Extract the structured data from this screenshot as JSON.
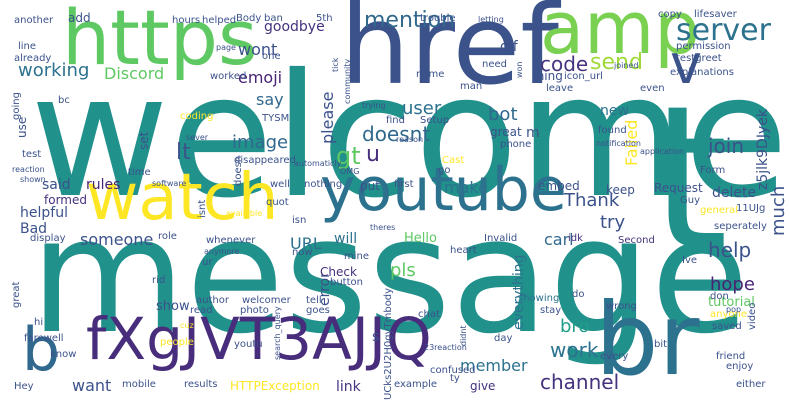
{
  "words": [
    {
      "id": "welcome",
      "text": "welcome",
      "color": "#21918c"
    },
    {
      "id": "message",
      "text": "message",
      "color": "#21918c"
    },
    {
      "id": "href",
      "text": "href",
      "color": "#3b528b"
    },
    {
      "id": "https",
      "text": "https",
      "color": "#5ec962"
    },
    {
      "id": "amp",
      "text": "amp",
      "color": "#7ad151"
    },
    {
      "id": "youtube",
      "text": "youtube",
      "color": "#2c728e"
    },
    {
      "id": "watch",
      "text": "watch",
      "color": "#fde725"
    },
    {
      "id": "fxgjvt3ajjq",
      "text": "fXgJVT3AJJQ",
      "color": "#472d7b"
    },
    {
      "id": "br",
      "text": "br",
      "color": "#2c728e"
    },
    {
      "id": "b",
      "text": "b",
      "color": "#31688e"
    },
    {
      "id": "t-big",
      "text": "t",
      "color": "#21918c"
    },
    {
      "id": "v",
      "text": "v",
      "color": "#3b528b"
    },
    {
      "id": "server",
      "text": "server",
      "color": "#2c728e"
    },
    {
      "id": "send",
      "text": "send",
      "color": "#a0da39"
    },
    {
      "id": "code",
      "text": "code",
      "color": "#46327e"
    },
    {
      "id": "mention",
      "text": "mention",
      "color": "#31688e"
    },
    {
      "id": "goodbye",
      "text": "goodbye",
      "color": "#46327e"
    },
    {
      "id": "wont",
      "text": "wont",
      "color": "#3b528b"
    },
    {
      "id": "working",
      "text": "working",
      "color": "#2c728e"
    },
    {
      "id": "discord",
      "text": "Discord",
      "color": "#5ec962"
    },
    {
      "id": "emoji",
      "text": "emoji",
      "color": "#482475"
    },
    {
      "id": "say",
      "text": "say",
      "color": "#31688e"
    },
    {
      "id": "image",
      "text": "image",
      "color": "#31688e"
    },
    {
      "id": "lt",
      "text": "lt",
      "color": "#3b528b"
    },
    {
      "id": "gt",
      "text": "gt",
      "color": "#5ec962"
    },
    {
      "id": "u",
      "text": "u",
      "color": "#472d7b"
    },
    {
      "id": "doesnt",
      "text": "doesnt",
      "color": "#31688e"
    },
    {
      "id": "user",
      "text": "user",
      "color": "#2c728e"
    },
    {
      "id": "bot",
      "text": "bot",
      "color": "#31688e"
    },
    {
      "id": "please",
      "text": "please",
      "color": "#3b528b"
    },
    {
      "id": "thank",
      "text": "Thank",
      "color": "#3b528b"
    },
    {
      "id": "join",
      "text": "join",
      "color": "#3b528b"
    },
    {
      "id": "help",
      "text": "help",
      "color": "#3b528b"
    },
    {
      "id": "hope",
      "text": "hope",
      "color": "#482475"
    },
    {
      "id": "try",
      "text": "try",
      "color": "#3b528b"
    },
    {
      "id": "much",
      "text": "much",
      "color": "#3b528b"
    },
    {
      "id": "make",
      "text": "make",
      "color": "#2c728e"
    },
    {
      "id": "embed",
      "text": "embed",
      "color": "#3b528b"
    },
    {
      "id": "someone",
      "text": "someone",
      "color": "#3b528b"
    },
    {
      "id": "url",
      "text": "URL",
      "color": "#2c728e"
    },
    {
      "id": "will",
      "text": "will",
      "color": "#2c728e"
    },
    {
      "id": "hello",
      "text": "Hello",
      "color": "#5ec962"
    },
    {
      "id": "carl",
      "text": "carl",
      "color": "#31688e"
    },
    {
      "id": "error",
      "text": "error",
      "color": "#3b528b"
    },
    {
      "id": "pls",
      "text": "pls",
      "color": "#5ec962"
    },
    {
      "id": "check",
      "text": "Check",
      "color": "#46327e"
    },
    {
      "id": "everything",
      "text": "everything",
      "color": "#2c728e"
    },
    {
      "id": "work",
      "text": "work",
      "color": "#2c728e"
    },
    {
      "id": "bro",
      "text": "bro",
      "color": "#1f9e89"
    },
    {
      "id": "member",
      "text": "member",
      "color": "#2c728e"
    },
    {
      "id": "channel",
      "text": "channel",
      "color": "#46327e"
    },
    {
      "id": "want",
      "text": "want",
      "color": "#3b528b"
    },
    {
      "id": "link",
      "text": "link",
      "color": "#46327e"
    },
    {
      "id": "give",
      "text": "give",
      "color": "#46327e"
    },
    {
      "id": "show",
      "text": "show",
      "color": "#3b528b"
    },
    {
      "id": "bad",
      "text": "Bad",
      "color": "#3b528b"
    },
    {
      "id": "delete",
      "text": "delete",
      "color": "#3b528b"
    },
    {
      "id": "request",
      "text": "Request",
      "color": "#3b528b"
    },
    {
      "id": "keep",
      "text": "keep",
      "color": "#3b528b"
    },
    {
      "id": "tutorial",
      "text": "tutorial",
      "color": "#5ec962"
    },
    {
      "id": "failed",
      "text": "Failed",
      "color": "#fde725"
    },
    {
      "id": "new",
      "text": "new",
      "color": "#2c728e"
    },
    {
      "id": "rules",
      "text": "rules",
      "color": "#482475"
    },
    {
      "id": "said",
      "text": "said",
      "color": "#3b528b"
    },
    {
      "id": "helpful",
      "text": "helpful",
      "color": "#3b528b"
    },
    {
      "id": "formed",
      "text": "formed",
      "color": "#46327e"
    },
    {
      "id": "set",
      "text": "set",
      "color": "#3b528b"
    },
    {
      "id": "use",
      "text": "use",
      "color": "#3b528b"
    },
    {
      "id": "add",
      "text": "add",
      "color": "#3b528b"
    },
    {
      "id": "put",
      "text": "put",
      "color": "#3b528b"
    },
    {
      "id": "thing",
      "text": "thing",
      "color": "#3b528b"
    },
    {
      "id": "name",
      "text": "name",
      "color": "#3b528b"
    },
    {
      "id": "need",
      "text": "need",
      "color": "#3b528b"
    },
    {
      "id": "gif",
      "text": "gif",
      "color": "#3b528b"
    },
    {
      "id": "great",
      "text": "great",
      "color": "#3b528b"
    },
    {
      "id": "m",
      "text": "m",
      "color": "#3b528b"
    },
    {
      "id": "idk",
      "text": "idk",
      "color": "#46327e"
    },
    {
      "id": "invalid",
      "text": "Invalid",
      "color": "#3b528b"
    },
    {
      "id": "second",
      "text": "Second",
      "color": "#46327e"
    },
    {
      "id": "wrong",
      "text": "wrong",
      "color": "#3b528b"
    },
    {
      "id": "stay",
      "text": "stay",
      "color": "#3b528b"
    },
    {
      "id": "showing",
      "text": "showing",
      "color": "#2c728e"
    },
    {
      "id": "every",
      "text": "every",
      "color": "#3b528b"
    },
    {
      "id": "video",
      "text": "video",
      "color": "#3b528b"
    },
    {
      "id": "anyone",
      "text": "anyone",
      "color": "#fde725"
    },
    {
      "id": "saved",
      "text": "saved",
      "color": "#3b528b"
    },
    {
      "id": "friend",
      "text": "friend",
      "color": "#3b528b"
    },
    {
      "id": "form",
      "text": "Form",
      "color": "#3b528b"
    },
    {
      "id": "role",
      "text": "role",
      "color": "#3b528b"
    },
    {
      "id": "whenever",
      "text": "whenever",
      "color": "#3b528b"
    },
    {
      "id": "display",
      "text": "display",
      "color": "#3b528b"
    },
    {
      "id": "time",
      "text": "time",
      "color": "#3b528b"
    },
    {
      "id": "well",
      "text": "well",
      "color": "#3b528b"
    },
    {
      "id": "nothing",
      "text": "nothing",
      "color": "#3b528b"
    },
    {
      "id": "first",
      "text": "first",
      "color": "#3b528b"
    },
    {
      "id": "isn",
      "text": "isn",
      "color": "#3b528b"
    },
    {
      "id": "now",
      "text": "now",
      "color": "#3b528b"
    },
    {
      "id": "heart",
      "text": "heart",
      "color": "#3b528b"
    },
    {
      "id": "ive",
      "text": "Ive",
      "color": "#3b528b"
    },
    {
      "id": "chat",
      "text": "chat",
      "color": "#3b528b"
    },
    {
      "id": "day",
      "text": "day",
      "color": "#3b528b"
    },
    {
      "id": "ty",
      "text": "ty",
      "color": "#3b528b"
    },
    {
      "id": "example",
      "text": "example",
      "color": "#3b528b"
    },
    {
      "id": "results",
      "text": "results",
      "color": "#3b528b"
    },
    {
      "id": "mobile",
      "text": "mobile",
      "color": "#3b528b"
    },
    {
      "id": "author",
      "text": "author",
      "color": "#3b528b"
    },
    {
      "id": "photo",
      "text": "photo",
      "color": "#3b528b"
    },
    {
      "id": "read",
      "text": "read",
      "color": "#3b528b"
    },
    {
      "id": "welcomer",
      "text": "welcomer",
      "color": "#3b528b"
    },
    {
      "id": "rid",
      "text": "rid",
      "color": "#3b528b"
    },
    {
      "id": "ur",
      "text": "ur",
      "color": "#3b528b"
    },
    {
      "id": "button",
      "text": "button",
      "color": "#3b528b"
    },
    {
      "id": "mine",
      "text": "mine",
      "color": "#3b528b"
    },
    {
      "id": "tell",
      "text": "tell",
      "color": "#3b528b"
    },
    {
      "id": "goes",
      "text": "goes",
      "color": "#3b528b"
    },
    {
      "id": "farewell",
      "text": "farewell",
      "color": "#3b528b"
    },
    {
      "id": "know",
      "text": "know",
      "color": "#3b528b"
    },
    {
      "id": "hi",
      "text": "hi",
      "color": "#3b528b"
    },
    {
      "id": "hey",
      "text": "Hey",
      "color": "#3b528b"
    },
    {
      "id": "great2",
      "text": "great",
      "color": "#3b528b"
    },
    {
      "id": "people",
      "text": "people",
      "color": "#fde725"
    },
    {
      "id": "httpexception",
      "text": "HTTPException",
      "color": "#fde725"
    },
    {
      "id": "confused",
      "text": "confused",
      "color": "#3b528b"
    },
    {
      "id": "enjoy",
      "text": "enjoy",
      "color": "#3b528b"
    },
    {
      "id": "either",
      "text": "either",
      "color": "#3b528b"
    },
    {
      "id": "bit",
      "text": "bit",
      "color": "#3b528b"
    },
    {
      "id": "don",
      "text": "don",
      "color": "#3b528b"
    },
    {
      "id": "general",
      "text": "general",
      "color": "#fde725"
    },
    {
      "id": "seperately",
      "text": "seperately",
      "color": "#3b528b"
    },
    {
      "id": "11uj",
      "text": "11UJg",
      "color": "#3b528b"
    },
    {
      "id": "guy",
      "text": "Guy",
      "color": "#3b528b"
    },
    {
      "id": "another",
      "text": "another",
      "color": "#3b528b"
    },
    {
      "id": "line",
      "text": "line",
      "color": "#3b528b"
    },
    {
      "id": "already",
      "text": "already",
      "color": "#3b528b"
    },
    {
      "id": "going",
      "text": "going",
      "color": "#3b528b"
    },
    {
      "id": "bc",
      "text": "bc",
      "color": "#3b528b"
    },
    {
      "id": "test",
      "text": "test",
      "color": "#3b528b"
    },
    {
      "id": "reaction",
      "text": "reaction",
      "color": "#3b528b"
    },
    {
      "id": "shown",
      "text": "shown",
      "color": "#3b528b"
    },
    {
      "id": "hours",
      "text": "hours",
      "color": "#3b528b"
    },
    {
      "id": "helped",
      "text": "helped",
      "color": "#3b528b"
    },
    {
      "id": "body",
      "text": "Body",
      "color": "#3b528b"
    },
    {
      "id": "ban",
      "text": "ban",
      "color": "#3b528b"
    },
    {
      "id": "page",
      "text": "page",
      "color": "#3b528b"
    },
    {
      "id": "worked",
      "text": "worked",
      "color": "#3b528b"
    },
    {
      "id": "coding",
      "text": "coding",
      "color": "#fde725"
    },
    {
      "id": "tysm",
      "text": "TYSM",
      "color": "#3b528b"
    },
    {
      "id": "sever",
      "text": "sever",
      "color": "#3b528b"
    },
    {
      "id": "disappeared",
      "text": "disappeared",
      "color": "#3b528b"
    },
    {
      "id": "automaticly",
      "text": "automaticly",
      "color": "#3b528b"
    },
    {
      "id": "omg",
      "text": "OMG",
      "color": "#3b528b"
    },
    {
      "id": "software",
      "text": "software",
      "color": "#3b528b"
    },
    {
      "id": "5th",
      "text": "5th",
      "color": "#3b528b"
    },
    {
      "id": "trouble",
      "text": "trouble",
      "color": "#3b528b"
    },
    {
      "id": "letting",
      "text": "letting",
      "color": "#3b528b"
    },
    {
      "id": "copy",
      "text": "copy",
      "color": "#3b528b"
    },
    {
      "id": "lifesaver",
      "text": "lifesaver",
      "color": "#3b528b"
    },
    {
      "id": "permission",
      "text": "permission",
      "color": "#3b528b"
    },
    {
      "id": "testgreet",
      "text": "testgreet",
      "color": "#3b528b"
    },
    {
      "id": "explanations",
      "text": "explanations",
      "color": "#3b528b"
    },
    {
      "id": "icon_url",
      "text": "icon_url",
      "color": "#3b528b"
    },
    {
      "id": "leave",
      "text": "leave",
      "color": "#3b528b"
    },
    {
      "id": "man",
      "text": "man",
      "color": "#3b528b"
    },
    {
      "id": "even",
      "text": "even",
      "color": "#3b528b"
    },
    {
      "id": "joined",
      "text": "joined",
      "color": "#3b528b"
    },
    {
      "id": "setup",
      "text": "Setup",
      "color": "#3b528b"
    },
    {
      "id": "find",
      "text": "find",
      "color": "#3b528b"
    },
    {
      "id": "reason",
      "text": "reason",
      "color": "#3b528b"
    },
    {
      "id": "trying",
      "text": "trying",
      "color": "#3b528b"
    },
    {
      "id": "phone",
      "text": "phone",
      "color": "#3b528b"
    },
    {
      "id": "cast",
      "text": "Cast",
      "color": "#fde725"
    },
    {
      "id": "go",
      "text": "go",
      "color": "#3b528b"
    },
    {
      "id": "found",
      "text": "found",
      "color": "#3b528b"
    },
    {
      "id": "notification",
      "text": "notification",
      "color": "#3b528b"
    },
    {
      "id": "application",
      "text": "application",
      "color": "#3b528b"
    },
    {
      "id": "quot",
      "text": "quot",
      "color": "#3b528b"
    },
    {
      "id": "doesn",
      "text": "doesn",
      "color": "#3b528b"
    },
    {
      "id": "isnt",
      "text": "isnt",
      "color": "#3b528b"
    },
    {
      "id": "available",
      "text": "available",
      "color": "#fde725"
    },
    {
      "id": "theres",
      "text": "theres",
      "color": "#3b528b"
    },
    {
      "id": "do",
      "text": "do",
      "color": "#3b528b"
    },
    {
      "id": "s",
      "text": "s",
      "color": "#3b528b"
    },
    {
      "id": "youtu",
      "text": "youtu",
      "color": "#3b528b"
    },
    {
      "id": "search_query",
      "text": "search_query",
      "color": "#3b528b"
    },
    {
      "id": "anymore",
      "text": "anymore",
      "color": "#3b528b"
    },
    {
      "id": "23reaction",
      "text": "23reaction",
      "color": "#3b528b"
    },
    {
      "id": "didnt",
      "text": "didnt",
      "color": "#3b528b"
    },
    {
      "id": "ucks",
      "text": "UCks2U2H0gyTmbody",
      "color": "#3b528b"
    },
    {
      "id": "z5jlk9djyek",
      "text": "z5jlk9DJyek",
      "color": "#3b528b"
    },
    {
      "id": "community",
      "text": "community",
      "color": "#3b528b"
    },
    {
      "id": "tick",
      "text": "tick",
      "color": "#3b528b"
    },
    {
      "id": "won",
      "text": "won",
      "color": "#3b528b"
    },
    {
      "id": "cuz",
      "text": "cuz",
      "color": "#fde725"
    },
    {
      "id": "one",
      "text": "one",
      "color": "#3b528b"
    },
    {
      "id": "pop",
      "text": "pop",
      "color": "#3b528b"
    }
  ]
}
